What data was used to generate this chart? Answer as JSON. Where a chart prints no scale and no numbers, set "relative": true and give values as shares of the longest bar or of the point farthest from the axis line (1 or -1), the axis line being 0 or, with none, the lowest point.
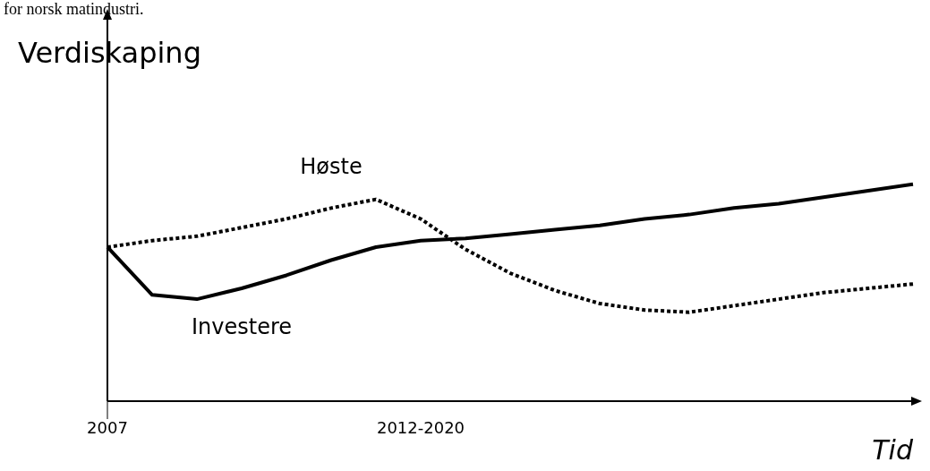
{
  "chart_data": {
    "type": "line",
    "relative": true,
    "ylabel": "Verdiskaping",
    "xlabel": "Tid",
    "annotations": [
      "for norsk matindustri."
    ],
    "categories": [
      "2007",
      null,
      null,
      null,
      null,
      null,
      null,
      "2012-2020",
      null,
      null,
      null,
      null,
      null,
      null,
      null,
      null,
      null,
      null,
      null
    ],
    "series": [
      {
        "name": "Høste",
        "color": "#000000",
        "line_style": "dotted",
        "values": [
          0.71,
          0.74,
          0.76,
          0.8,
          0.84,
          0.89,
          0.93,
          0.84,
          0.7,
          0.59,
          0.51,
          0.45,
          0.42,
          0.41,
          0.44,
          0.47,
          0.5,
          0.52,
          0.54
        ]
      },
      {
        "name": "Investere",
        "color": "#000000",
        "line_style": "solid",
        "values": [
          0.71,
          0.49,
          0.47,
          0.52,
          0.58,
          0.65,
          0.71,
          0.74,
          0.75,
          0.77,
          0.79,
          0.81,
          0.84,
          0.86,
          0.89,
          0.91,
          0.94,
          0.97,
          1
        ]
      }
    ],
    "grid": false,
    "legend": false,
    "marker": "none"
  }
}
